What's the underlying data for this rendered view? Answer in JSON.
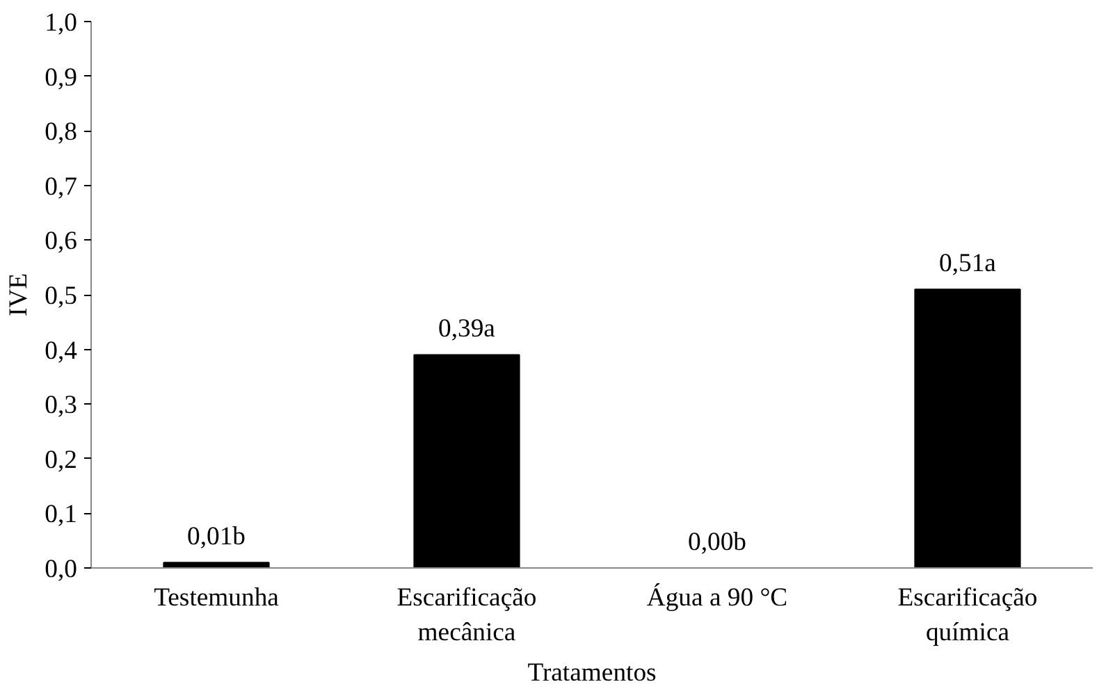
{
  "chart_data": {
    "type": "bar",
    "xlabel": "Tratamentos",
    "ylabel": "IVE",
    "categories": [
      "Testemunha",
      "Escarificação\nmecânica",
      "Água a 90 °C",
      "Escarificação\nquímica"
    ],
    "values": [
      0.01,
      0.39,
      0.0,
      0.51
    ],
    "value_labels": [
      "0,01b",
      "0,39a",
      "0,00b",
      "0,51a"
    ],
    "color": "#000000",
    "ylim": [
      0,
      1
    ],
    "yticks": [
      {
        "value": 0,
        "label": "0,0"
      },
      {
        "value": 0.1,
        "label": "0,1"
      },
      {
        "value": 0.2,
        "label": "0,2"
      },
      {
        "value": 0.3,
        "label": "0,3"
      },
      {
        "value": 0.4,
        "label": "0,4"
      },
      {
        "value": 0.5,
        "label": "0,5"
      },
      {
        "value": 0.6,
        "label": "0,6"
      },
      {
        "value": 0.7,
        "label": "0,7"
      },
      {
        "value": 0.8,
        "label": "0,8"
      },
      {
        "value": 0.9,
        "label": "0,9"
      },
      {
        "value": 1,
        "label": "1,0"
      }
    ],
    "grid": false
  }
}
